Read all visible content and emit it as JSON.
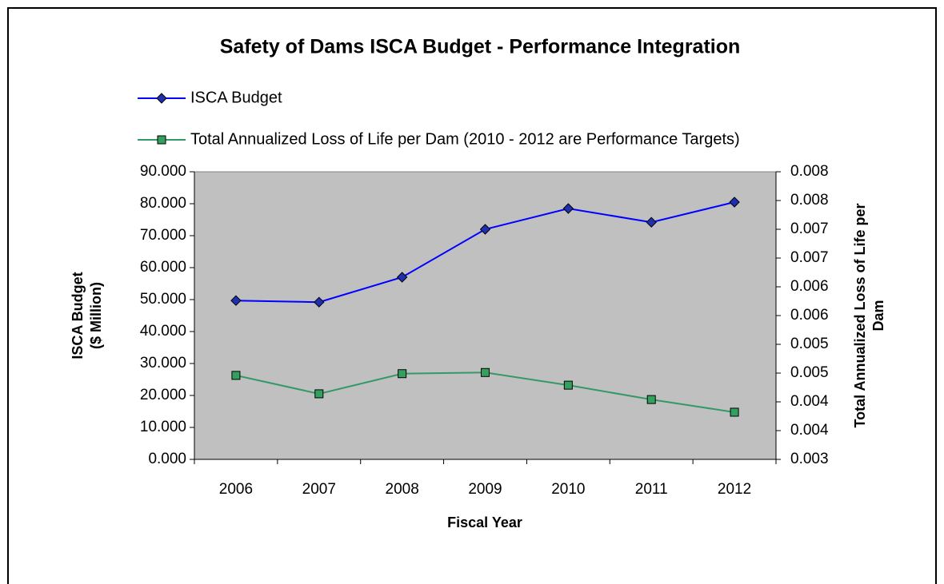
{
  "chart_data": {
    "type": "line",
    "title": "Safety of Dams ISCA Budget - Performance Integration",
    "x_label": "Fiscal Year",
    "y_label": [
      "ISCA Budget",
      "($ Million)"
    ],
    "y2_label": [
      "Total Annualized Loss of Life per",
      "Dam"
    ],
    "categories": [
      "2006",
      "2007",
      "2008",
      "2009",
      "2010",
      "2011",
      "2012"
    ],
    "series": [
      {
        "name": "ISCA Budget",
        "color": "#0000ff",
        "marker_color": "#1f2fb0",
        "marker": "diamond",
        "values": [
          49.7,
          49.2,
          57,
          72,
          78.5,
          74.2,
          80.5
        ]
      },
      {
        "name": "Total Annualized Loss of Life per Dam (2010 - 2012 are Performance Targets)",
        "color": "#339966",
        "marker_color": "#33a060",
        "marker": "square",
        "axis": "y2",
        "values": [
          0.00446,
          0.00414,
          0.00449,
          0.00451,
          0.00429,
          0.00404,
          0.00382
        ]
      }
    ],
    "ylim": [
      0,
      90
    ],
    "yticks": [
      {
        "value": 0,
        "label": "0.000"
      },
      {
        "value": 10,
        "label": "10.000"
      },
      {
        "value": 20,
        "label": "20.000"
      },
      {
        "value": 30,
        "label": "30.000"
      },
      {
        "value": 40,
        "label": "40.000"
      },
      {
        "value": 50,
        "label": "50.000"
      },
      {
        "value": 60,
        "label": "60.000"
      },
      {
        "value": 70,
        "label": "70.000"
      },
      {
        "value": 80,
        "label": "80.000"
      },
      {
        "value": 90,
        "label": "90.000"
      }
    ],
    "y2lim": [
      0.003,
      0.008
    ],
    "y2ticks": [
      0.003,
      {
        "value": 0.0035,
        "label": "0.004"
      },
      0.004,
      {
        "value": 0.0045,
        "label": "0.005"
      },
      0.005,
      {
        "value": 0.0055,
        "label": "0.006"
      },
      0.006,
      {
        "value": 0.0065,
        "label": "0.007"
      },
      0.007,
      {
        "value": 0.0075,
        "label": "0.008"
      },
      0.008
    ],
    "plot_background": "#c0c0c0",
    "grid": false
  }
}
